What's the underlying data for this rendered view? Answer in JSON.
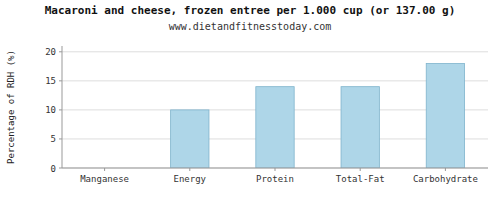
{
  "chart_data": {
    "type": "bar",
    "title": "Macaroni and cheese, frozen entree per 1.000 cup (or 137.00 g)",
    "subtitle": "www.dietandfitnesstoday.com",
    "ylabel": "Percentage of RDH (%)",
    "categories": [
      "Manganese",
      "Energy",
      "Protein",
      "Total-Fat",
      "Carbohydrate"
    ],
    "values": [
      0,
      10,
      14,
      14,
      18
    ],
    "color": "#aed6e8",
    "ylim": [
      0,
      21
    ],
    "yticks": [
      0,
      5,
      10,
      15,
      20
    ],
    "grid": true
  }
}
